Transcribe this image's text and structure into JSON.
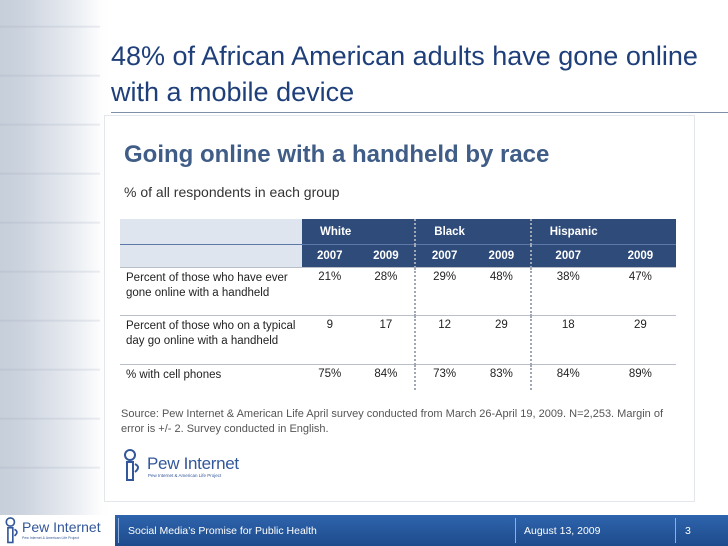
{
  "slide": {
    "title": "48% of African American adults have gone online with a mobile device"
  },
  "chart": {
    "title": "Going online with a handheld by race",
    "subtitle": "% of all respondents in each group",
    "groups": [
      "White",
      "Black",
      "Hispanic"
    ],
    "years": [
      "2007",
      "2009",
      "2007",
      "2009",
      "2007",
      "2009"
    ],
    "rows": [
      {
        "label": "Percent of those who have ever gone online with a handheld",
        "values": [
          "21%",
          "28%",
          "29%",
          "48%",
          "38%",
          "47%"
        ]
      },
      {
        "label": "Percent of those who on a typical day go online with a handheld",
        "values": [
          "9",
          "17",
          "12",
          "29",
          "18",
          "29"
        ]
      },
      {
        "label": "% with cell phones",
        "values": [
          "75%",
          "84%",
          "73%",
          "83%",
          "84%",
          "89%"
        ]
      }
    ],
    "source": "Source: Pew Internet & American Life April survey conducted from March 26-April 19, 2009. N=2,253. Margin of error is +/- 2. Survey conducted in English."
  },
  "logo": {
    "name": "Pew Internet",
    "tagline": "Pew Internet & American Life Project"
  },
  "footer": {
    "title": "Social Media’s Promise for Public Health",
    "date": "August 13, 2009",
    "page": "3"
  },
  "colors": {
    "title": "#1f3f7a",
    "table_header": "#2e4b7a",
    "footer": "#1e4b8c"
  },
  "icons": [
    "pew-logo-icon"
  ]
}
